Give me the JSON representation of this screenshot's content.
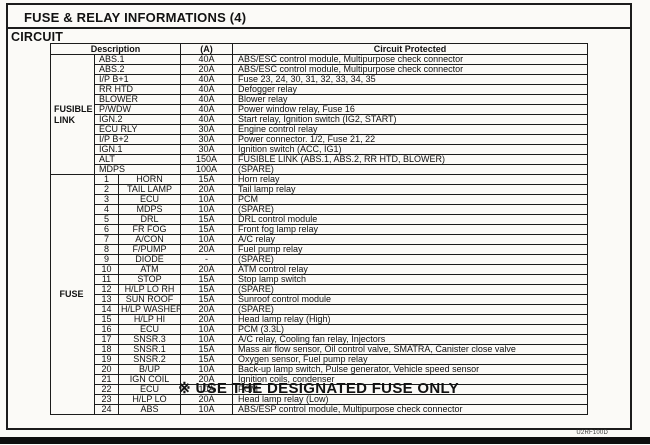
{
  "page": {
    "title": "FUSE & RELAY INFORMATIONS (4)",
    "section": "CIRCUIT",
    "footer_note": "※ USE THE DESIGNATED FUSE ONLY",
    "doc_code": "U2RF100D",
    "border_color": "#1c1c1c",
    "paper_color": "#fbfaf7"
  },
  "table": {
    "headers": {
      "description": "Description",
      "amp": "(A)",
      "circuit": "Circuit Protected"
    },
    "fusible_link": {
      "label": "FUSIBLE LINK",
      "rows": [
        {
          "name": "ABS.1",
          "amp": "40A",
          "circuit": "ABS/ESC control module, Multipurpose check connector"
        },
        {
          "name": "ABS.2",
          "amp": "20A",
          "circuit": "ABS/ESC control module, Multipurpose check connector"
        },
        {
          "name": "I/P B+1",
          "amp": "40A",
          "circuit": "Fuse 23, 24, 30, 31, 32, 33, 34, 35"
        },
        {
          "name": "RR HTD",
          "amp": "40A",
          "circuit": "Defogger relay"
        },
        {
          "name": "BLOWER",
          "amp": "40A",
          "circuit": "Blower relay"
        },
        {
          "name": "P/WDW",
          "amp": "40A",
          "circuit": "Power window relay, Fuse 16"
        },
        {
          "name": "IGN.2",
          "amp": "40A",
          "circuit": "Start relay, Ignition switch (IG2, START)"
        },
        {
          "name": "ECU RLY",
          "amp": "30A",
          "circuit": "Engine control relay"
        },
        {
          "name": "I/P B+2",
          "amp": "30A",
          "circuit": "Power connector. 1/2, Fuse 21, 22"
        },
        {
          "name": "IGN.1",
          "amp": "30A",
          "circuit": "Ignition switch (ACC, IG1)"
        },
        {
          "name": "ALT",
          "amp": "150A",
          "circuit": "FUSIBLE LINK (ABS.1, ABS.2, RR HTD, BLOWER)"
        },
        {
          "name": "MDPS",
          "amp": "100A",
          "circuit": "(SPARE)"
        }
      ]
    },
    "fuse": {
      "label": "FUSE",
      "rows": [
        {
          "no": "1",
          "name": "HORN",
          "amp": "15A",
          "circuit": "Horn relay"
        },
        {
          "no": "2",
          "name": "TAIL LAMP",
          "amp": "20A",
          "circuit": "Tail lamp relay"
        },
        {
          "no": "3",
          "name": "ECU",
          "amp": "10A",
          "circuit": "PCM"
        },
        {
          "no": "4",
          "name": "MDPS",
          "amp": "10A",
          "circuit": "(SPARE)"
        },
        {
          "no": "5",
          "name": "DRL",
          "amp": "15A",
          "circuit": "DRL control module"
        },
        {
          "no": "6",
          "name": "FR FOG",
          "amp": "15A",
          "circuit": "Front fog lamp relay"
        },
        {
          "no": "7",
          "name": "A/CON",
          "amp": "10A",
          "circuit": "A/C relay"
        },
        {
          "no": "8",
          "name": "F/PUMP",
          "amp": "20A",
          "circuit": "Fuel pump relay"
        },
        {
          "no": "9",
          "name": "DIODE",
          "amp": "-",
          "circuit": "(SPARE)"
        },
        {
          "no": "10",
          "name": "ATM",
          "amp": "20A",
          "circuit": "ATM control relay"
        },
        {
          "no": "11",
          "name": "STOP",
          "amp": "15A",
          "circuit": "Stop lamp switch"
        },
        {
          "no": "12",
          "name": "H/LP LO RH",
          "amp": "15A",
          "circuit": "(SPARE)"
        },
        {
          "no": "13",
          "name": "SUN ROOF",
          "amp": "15A",
          "circuit": "Sunroof control module"
        },
        {
          "no": "14",
          "name": "H/LP WASHER",
          "amp": "20A",
          "circuit": "(SPARE)"
        },
        {
          "no": "15",
          "name": "H/LP HI",
          "amp": "20A",
          "circuit": "Head lamp relay (High)"
        },
        {
          "no": "16",
          "name": "ECU",
          "amp": "10A",
          "circuit": "PCM (3.3L)"
        },
        {
          "no": "17",
          "name": "SNSR.3",
          "amp": "10A",
          "circuit": "A/C relay, Cooling fan relay, Injectors"
        },
        {
          "no": "18",
          "name": "SNSR.1",
          "amp": "15A",
          "circuit": "Mass air flow sensor, Oil control valve, SMATRA, Canister close valve"
        },
        {
          "no": "19",
          "name": "SNSR.2",
          "amp": "15A",
          "circuit": "Oxygen sensor, Fuel pump relay"
        },
        {
          "no": "20",
          "name": "B/UP",
          "amp": "10A",
          "circuit": "Back-up lamp switch, Pulse generator, Vehicle speed sensor"
        },
        {
          "no": "21",
          "name": "IGN COIL",
          "amp": "20A",
          "circuit": "Ignition coils, condenser"
        },
        {
          "no": "22",
          "name": "ECU",
          "amp": "10A",
          "circuit": "PCM"
        },
        {
          "no": "23",
          "name": "H/LP LO",
          "amp": "20A",
          "circuit": "Head lamp relay (Low)"
        },
        {
          "no": "24",
          "name": "ABS",
          "amp": "10A",
          "circuit": "ABS/ESP control module, Multipurpose check connector"
        }
      ]
    }
  }
}
